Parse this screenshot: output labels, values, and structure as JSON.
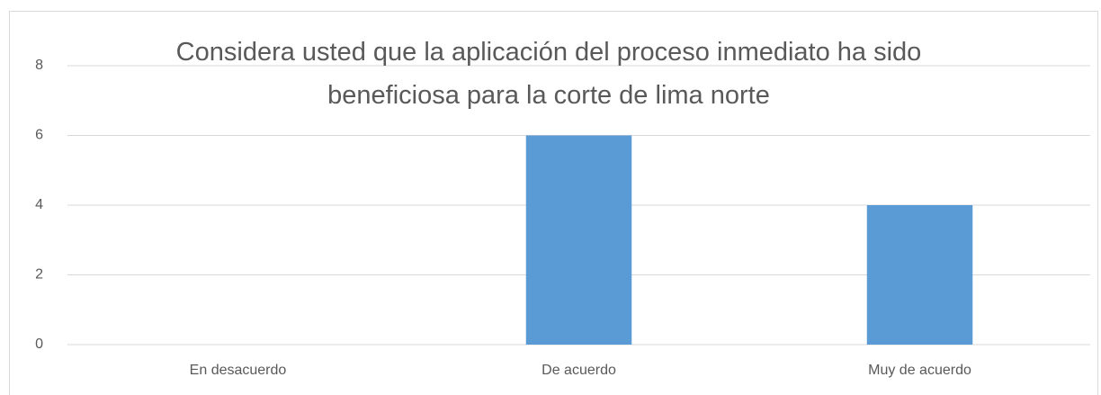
{
  "chart_data": {
    "type": "bar",
    "title": "Considera usted que la aplicación del proceso inmediato ha sido beneficiosa para la corte de lima norte",
    "categories": [
      "En desacuerdo",
      "De acuerdo",
      "Muy de acuerdo"
    ],
    "values": [
      0,
      6,
      4
    ],
    "color": "#5b9bd5",
    "ylim": [
      0,
      8
    ],
    "yticks": [
      0,
      2,
      4,
      6,
      8
    ],
    "grid": true
  }
}
